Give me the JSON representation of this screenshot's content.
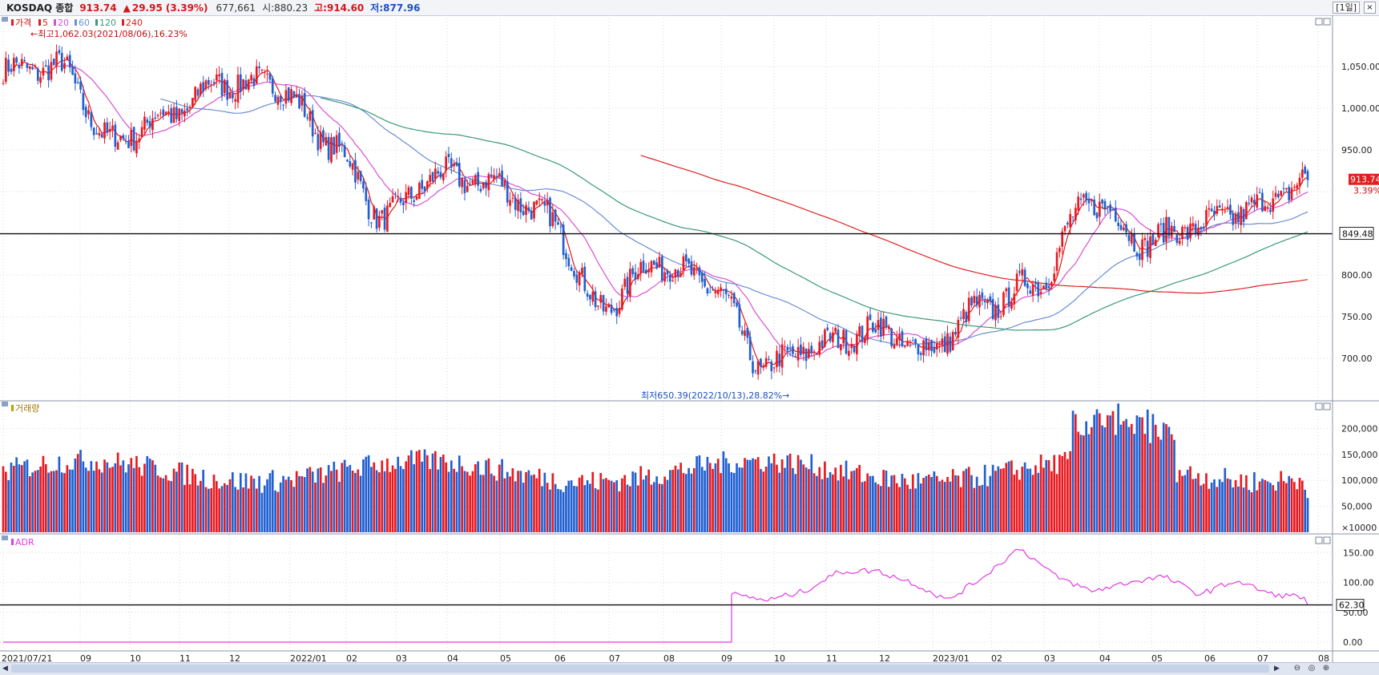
{
  "header": {
    "index_name": "KOSDAQ 종합",
    "price": "913.74",
    "change_arrow": "▲",
    "change": "29.95",
    "change_pct": "(3.39%)",
    "volume": "677,661",
    "open": "시:880.23",
    "high": "고:914.60",
    "low": "저:877.96",
    "period": "[1일]",
    "close": "×"
  },
  "colors": {
    "up": "#e8191f",
    "down": "#1f5fd0",
    "ma5": "#e31a1c",
    "ma20": "#d94fd5",
    "ma60": "#6b8fd4",
    "ma120": "#3a9a78",
    "ma240": "#e02020",
    "adr": "#e23be0"
  },
  "legend": {
    "price": "가격",
    "ma5": "5",
    "ma20": "20",
    "ma60": "60",
    "ma120": "120",
    "ma240": "240",
    "high_note": "←최고1,062.03(2021/08/06),16.23%",
    "low_note": "최저650.39(2022/10/13),28.82%→"
  },
  "price_axis_ticks": [
    "1,050.00",
    "1,000.00",
    "950.00",
    "900.00",
    "850.00",
    "800.00",
    "750.00",
    "700.00"
  ],
  "price_labels": {
    "current": "913.74",
    "current_pct": "3.39%",
    "hline": "849.48"
  },
  "volume_legend": "거래량",
  "volume_axis_ticks": [
    "200,000",
    "150,000",
    "100,000",
    "50,000",
    "×10000"
  ],
  "adr_legend": "ADR",
  "adr_axis_ticks": [
    "150.00",
    "100.00",
    "50.00",
    "0.00"
  ],
  "adr_label": "62.30",
  "x_axis_labels": [
    "2021/07/21",
    "09",
    "10",
    "11",
    "12",
    "2022/01",
    "02",
    "03",
    "04",
    "05",
    "06",
    "07",
    "08",
    "09",
    "10",
    "11",
    "12",
    "2023/01",
    "02",
    "03",
    "04",
    "05",
    "06",
    "07",
    "08"
  ],
  "scroll": {
    "left": "◀",
    "right": "▶",
    "zoom_out": "⊖",
    "zoom_reset": "◎",
    "zoom_in": "⊕"
  },
  "chart_data": [
    {
      "type": "line",
      "name": "price",
      "x_labels": [
        "2021/07/21",
        "09",
        "10",
        "11",
        "12",
        "2022/01",
        "02",
        "03",
        "04",
        "05",
        "06",
        "07",
        "08",
        "09",
        "10",
        "11",
        "12",
        "2023/01",
        "02",
        "03",
        "04",
        "05",
        "06",
        "07",
        "08"
      ],
      "anchors": [
        1045,
        1050,
        960,
        990,
        1030,
        1030,
        960,
        870,
        920,
        910,
        870,
        760,
        815,
        790,
        690,
        715,
        735,
        710,
        760,
        790,
        890,
        840,
        860,
        880,
        914
      ],
      "ylim": [
        650,
        1080
      ],
      "annotations": [
        "최고1,062.03(2021/08/06)",
        "최저650.39(2022/10/13)"
      ],
      "last": 913.74,
      "hline": 849.48
    },
    {
      "type": "bar",
      "name": "volume",
      "unit": "×10000",
      "ylim": [
        0,
        230000
      ],
      "last": 66000
    },
    {
      "type": "line",
      "name": "ADR",
      "ylim": [
        0,
        170
      ],
      "start_value": 0,
      "data_start_label": "09",
      "anchors": [
        80,
        70,
        85,
        118,
        120,
        100,
        70,
        110,
        158,
        110,
        85,
        100,
        110,
        80,
        103,
        80,
        75
      ],
      "last": 62.3
    }
  ]
}
